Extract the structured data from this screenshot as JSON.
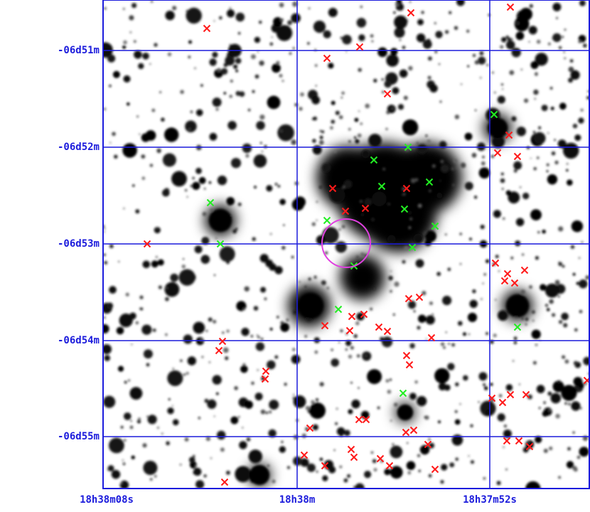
{
  "grid": {
    "dec_labels": [
      "-06d51m",
      "-06d52m",
      "-06d53m",
      "-06d54m",
      "-06d55m"
    ],
    "ra_labels": [
      "18h38m08s",
      "18h38m",
      "18h37m52s"
    ]
  }
}
